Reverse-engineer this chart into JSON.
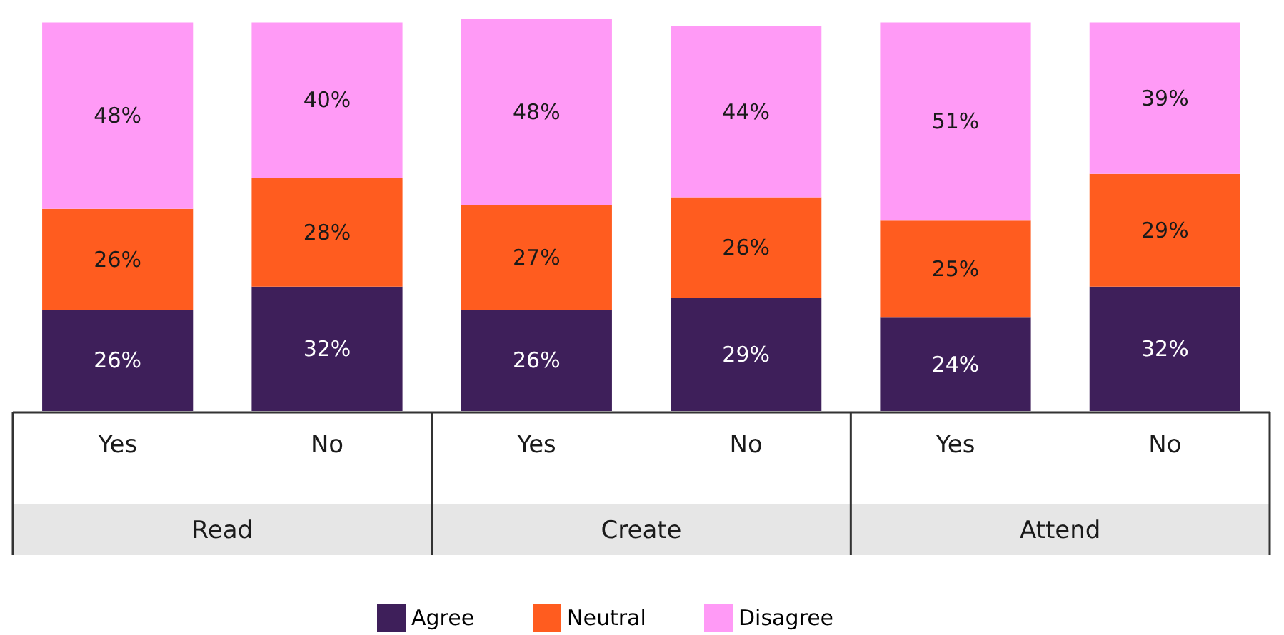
{
  "chart_data": {
    "type": "bar",
    "stacked": true,
    "legend": "bottom",
    "categories": [
      "Yes",
      "No",
      "Yes",
      "No",
      "Yes",
      "No"
    ],
    "annotations": [
      "Read",
      "Create",
      "Attend"
    ],
    "series": [
      {
        "name": "Agree",
        "color": "#3e1f5a",
        "values": [
          26,
          32,
          26,
          29,
          24,
          32
        ],
        "value_labels": [
          "26%",
          "32%",
          "26%",
          "29%",
          "24%",
          "32%"
        ]
      },
      {
        "name": "Neutral",
        "color": "#ff5c1f",
        "values": [
          26,
          28,
          27,
          26,
          25,
          29
        ],
        "value_labels": [
          "26%",
          "28%",
          "27%",
          "26%",
          "25%",
          "29%"
        ]
      },
      {
        "name": "Disagree",
        "color": "#ff9af6",
        "values": [
          48,
          40,
          48,
          44,
          51,
          39
        ],
        "value_labels": [
          "48%",
          "40%",
          "48%",
          "44%",
          "51%",
          "39%"
        ]
      }
    ]
  }
}
